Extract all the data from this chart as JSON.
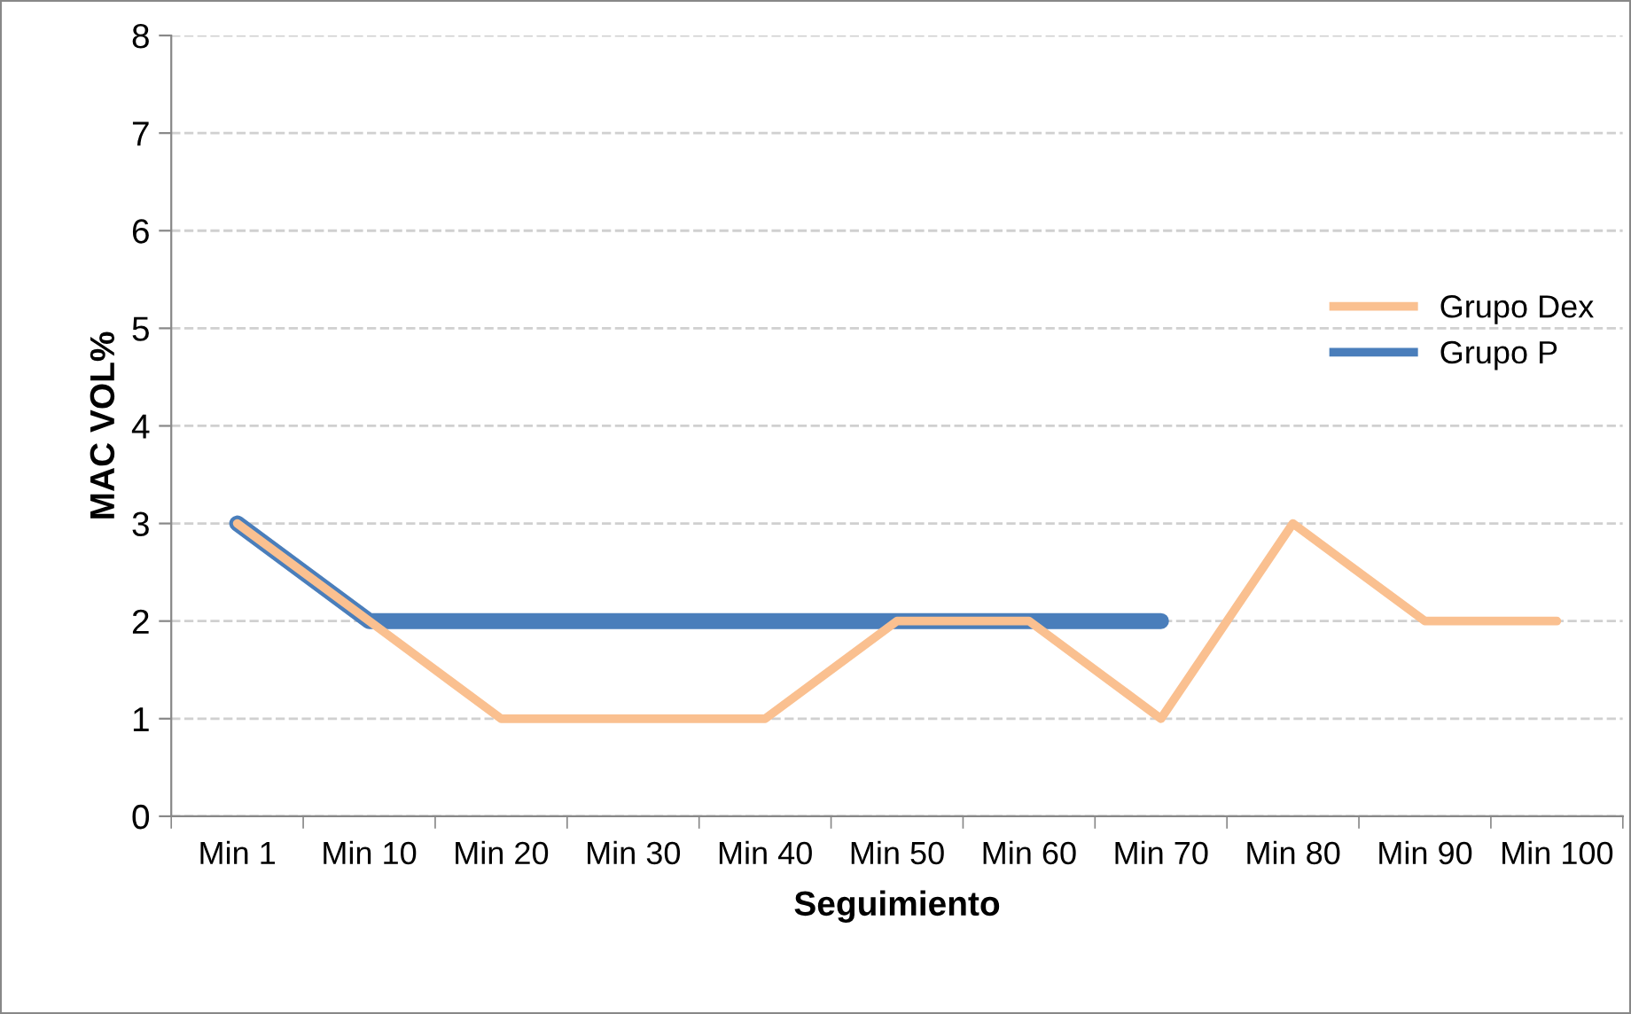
{
  "chart_data": {
    "type": "line",
    "xlabel": "Seguimiento",
    "ylabel": "MAC VOL%",
    "categories": [
      "Min 1",
      "Min 10",
      "Min 20",
      "Min 30",
      "Min 40",
      "Min 50",
      "Min 60",
      "Min 70",
      "Min 80",
      "Min 90",
      "Min 100"
    ],
    "series": [
      {
        "name": "Grupo Dex",
        "color": "#fac090",
        "values": [
          3,
          2,
          1,
          1,
          1,
          2,
          2,
          1,
          3,
          2,
          2
        ]
      },
      {
        "name": "Grupo P",
        "color": "#4a7ebb",
        "values": [
          3,
          2,
          2,
          2,
          2,
          2,
          2,
          2,
          null,
          null,
          null
        ]
      }
    ],
    "ylim": [
      0,
      8
    ],
    "yticks": [
      0,
      1,
      2,
      3,
      4,
      5,
      6,
      7,
      8
    ],
    "grid": "y",
    "legend": "right",
    "marker": "none",
    "line_style": "solid"
  }
}
